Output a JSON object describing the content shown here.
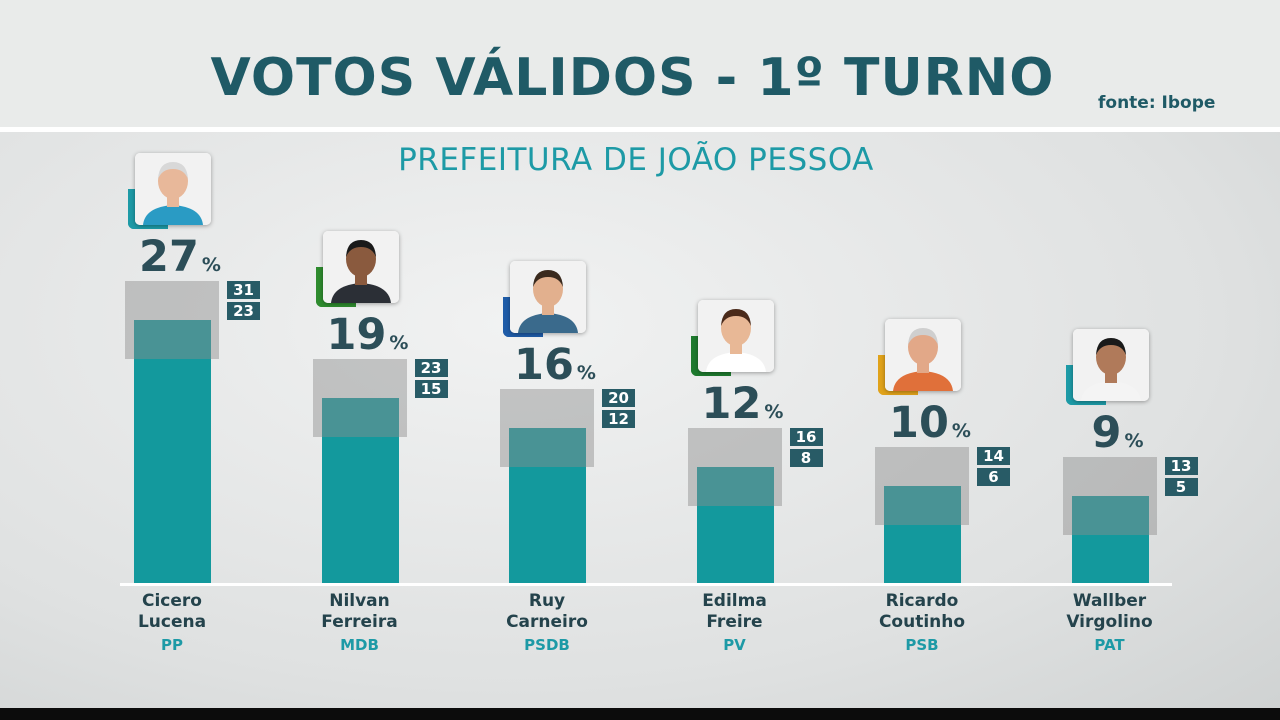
{
  "header": {
    "title": "VOTOS VÁLIDOS - 1º TURNO",
    "subtitle": "PREFEITURA DE JOÃO PESSOA",
    "source": "fonte: Ibope"
  },
  "colors": {
    "bar": "#13999d",
    "title": "#1f5a66",
    "subtitle": "#1d9aa6",
    "range_box": "#285b66"
  },
  "chart_data": {
    "type": "bar",
    "title": "VOTOS VÁLIDOS - 1º TURNO",
    "subtitle": "PREFEITURA DE JOÃO PESSOA",
    "unit": "%",
    "categories": [
      "Cicero Lucena",
      "Nilvan Ferreira",
      "Ruy Carneiro",
      "Edilma Freire",
      "Ricardo Coutinho",
      "Wallber Virgolino"
    ],
    "values": [
      27,
      19,
      16,
      12,
      10,
      9
    ],
    "ranges": [
      [
        23,
        31
      ],
      [
        15,
        23
      ],
      [
        12,
        20
      ],
      [
        8,
        16
      ],
      [
        6,
        14
      ],
      [
        5,
        13
      ]
    ],
    "ylim": [
      0,
      31
    ],
    "grid": false,
    "legend": "none"
  },
  "candidates": [
    {
      "first": "Cicero",
      "last": "Lucena",
      "party": "PP",
      "value": "27",
      "high": "31",
      "low": "23",
      "accent": "#1d9aa6",
      "icon": "candidate-photo"
    },
    {
      "first": "Nilvan",
      "last": "Ferreira",
      "party": "MDB",
      "value": "19",
      "high": "23",
      "low": "15",
      "accent": "#2e8b2e",
      "icon": "candidate-photo"
    },
    {
      "first": "Ruy",
      "last": "Carneiro",
      "party": "PSDB",
      "value": "16",
      "high": "20",
      "low": "12",
      "accent": "#1f5ca8",
      "icon": "candidate-photo"
    },
    {
      "first": "Edilma",
      "last": "Freire",
      "party": "PV",
      "value": "12",
      "high": "16",
      "low": "8",
      "accent": "#1e7a2e",
      "icon": "candidate-photo"
    },
    {
      "first": "Ricardo",
      "last": "Coutinho",
      "party": "PSB",
      "value": "10",
      "high": "14",
      "low": "6",
      "accent": "#e0a21a",
      "icon": "candidate-photo"
    },
    {
      "first": "Wallber",
      "last": "Virgolino",
      "party": "PAT",
      "value": "9",
      "high": "13",
      "low": "5",
      "accent": "#1d9aa6",
      "icon": "candidate-photo"
    }
  ],
  "percent_symbol": "%"
}
